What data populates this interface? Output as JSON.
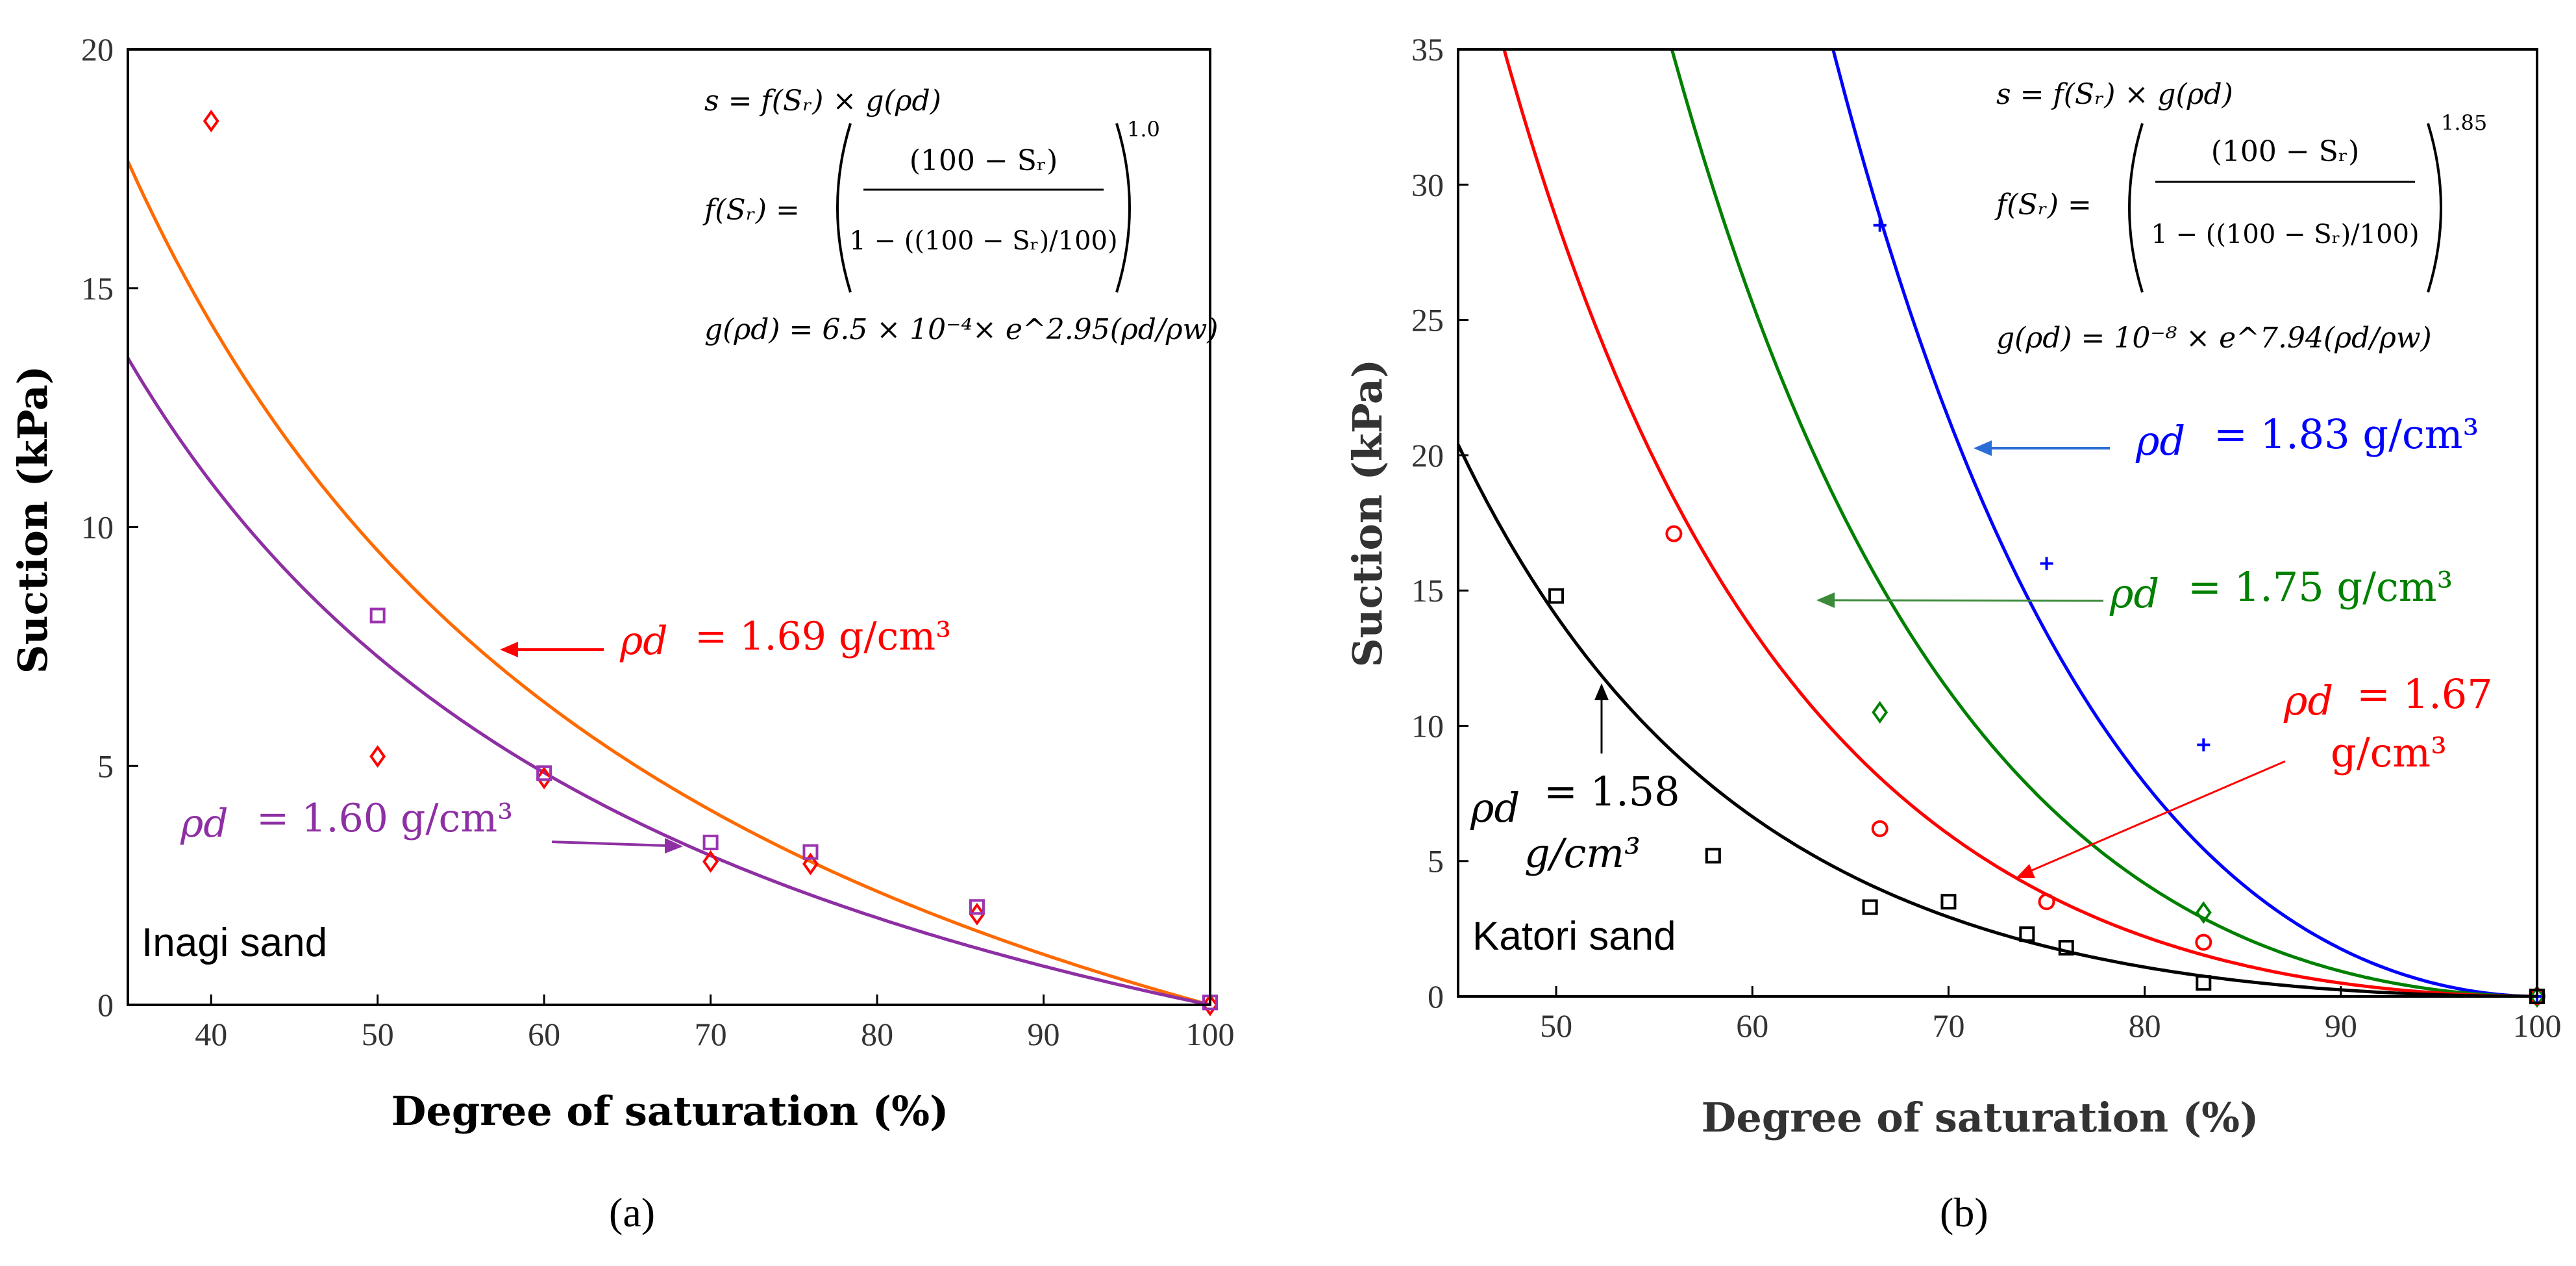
{
  "chart_data": [
    {
      "panel": "(a)",
      "type": "scatter",
      "xlabel": "Degree of saturation (%)",
      "ylabel": "Suction (kPa)",
      "xlim": [
        35,
        100
      ],
      "ylim": [
        0,
        20
      ],
      "xticks": [
        40,
        50,
        60,
        70,
        80,
        90,
        100
      ],
      "yticks": [
        0,
        5,
        10,
        15,
        20
      ],
      "sample_label": "Inagi sand",
      "equations": {
        "main": "s = f(Sᵣ) × g(ρd)",
        "f_lhs": "f(Sᵣ) =",
        "f_num": "(100 − Sᵣ)",
        "f_den": "1 − ((100 − Sᵣ)/100)",
        "f_exp": "1.0",
        "g": "g(ρd) = 6.5 × 10⁻⁴× e^2.95(ρd/ρw)"
      },
      "fit_params": {
        "a": 0.00065,
        "b": 2.95,
        "n": 1.0
      },
      "series": [
        {
          "name": "ρd = 1.69 g/cm³",
          "rho_d": 1.69,
          "marker": "diamond",
          "color": "#ff0000",
          "curve_color": "#ff6a00",
          "label_name": "ρd",
          "label_value": "= 1.69 g/cm³",
          "points": [
            [
              40,
              18.5
            ],
            [
              50,
              5.2
            ],
            [
              60,
              4.75
            ],
            [
              70,
              3.0
            ],
            [
              76,
              2.95
            ],
            [
              86,
              1.9
            ],
            [
              100,
              0.0
            ]
          ]
        },
        {
          "name": "ρd = 1.60 g/cm³",
          "rho_d": 1.6,
          "marker": "square",
          "color": "#9b35b0",
          "curve_color": "#8e2fa3",
          "label_name": "ρd",
          "label_value": "= 1.60 g/cm³",
          "points": [
            [
              50,
              8.15
            ],
            [
              60,
              4.85
            ],
            [
              70,
              3.4
            ],
            [
              76,
              3.2
            ],
            [
              86,
              2.05
            ],
            [
              100,
              0.05
            ]
          ]
        }
      ]
    },
    {
      "panel": "(b)",
      "type": "scatter",
      "xlabel": "Degree of saturation (%)",
      "ylabel": "Suction (kPa)",
      "xlim": [
        45,
        100
      ],
      "ylim": [
        0,
        35
      ],
      "xticks": [
        50,
        60,
        70,
        80,
        90,
        100
      ],
      "yticks": [
        0,
        5,
        10,
        15,
        20,
        25,
        30,
        35
      ],
      "sample_label": "Katori sand",
      "equations": {
        "main": "s = f(Sᵣ) × g(ρd)",
        "f_lhs": "f(Sᵣ) =",
        "f_num": "(100 −  Sᵣ)",
        "f_den": "1 − ((100 − Sᵣ)/100)",
        "f_exp": "1.85",
        "g": "g(ρd) = 10⁻⁸ × e^7.94(ρd/ρw)"
      },
      "fit_params": {
        "a": 1e-08,
        "b": 7.94,
        "n": 1.85
      },
      "series": [
        {
          "name": "ρd = 1.83 g/cm³",
          "rho_d": 1.83,
          "marker": "plus",
          "color": "#0000ff",
          "label_name": "ρd",
          "label_value": "= 1.83 g/cm³",
          "points": [
            [
              66.5,
              28.5
            ],
            [
              75,
              16.0
            ],
            [
              83,
              9.3
            ],
            [
              100,
              0.0
            ]
          ]
        },
        {
          "name": "ρd = 1.75 g/cm³",
          "rho_d": 1.75,
          "marker": "diamond",
          "color": "#008000",
          "label_name": "ρd",
          "label_value": "= 1.75  g/cm³",
          "points": [
            [
              66.5,
              10.5
            ],
            [
              83,
              3.1
            ],
            [
              100,
              0.0
            ]
          ]
        },
        {
          "name": "ρd = 1.67 g/cm³",
          "rho_d": 1.67,
          "marker": "circle",
          "color": "#ff0000",
          "label_name": "ρd",
          "label_value": "= 1.67",
          "label_value2": "g/cm³",
          "points": [
            [
              56,
              17.1
            ],
            [
              66.5,
              6.2
            ],
            [
              75,
              3.5
            ],
            [
              83,
              2.0
            ],
            [
              100,
              0.0
            ]
          ]
        },
        {
          "name": "ρd = 1.58 g/cm³",
          "rho_d": 1.58,
          "marker": "square",
          "color": "#000000",
          "label_name": "ρd",
          "label_value": "= 1.58",
          "label_value2": "g/cm³",
          "points": [
            [
              50,
              14.8
            ],
            [
              58,
              5.2
            ],
            [
              66,
              3.3
            ],
            [
              70,
              3.5
            ],
            [
              74,
              2.3
            ],
            [
              76,
              1.8
            ],
            [
              83,
              0.5
            ],
            [
              100,
              0.0
            ]
          ]
        }
      ]
    }
  ],
  "captions": {
    "a": "(a)",
    "b": "(b)"
  }
}
